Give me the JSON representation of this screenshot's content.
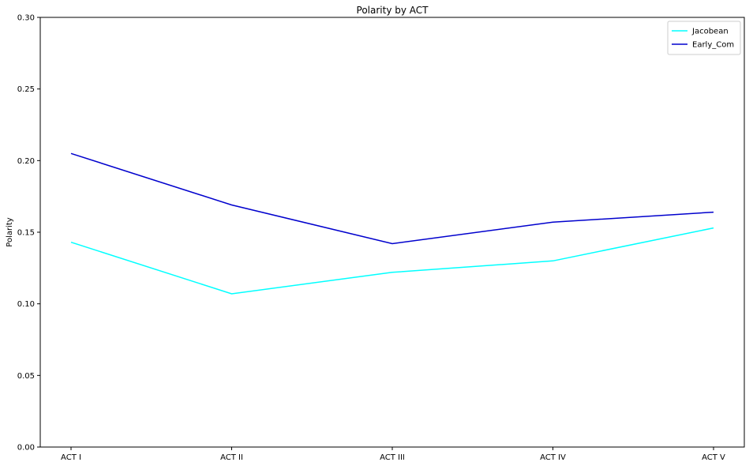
{
  "chart_data": {
    "type": "line",
    "title": "Polarity by ACT",
    "xlabel": "",
    "ylabel": "Polarity",
    "categories": [
      "ACT I",
      "ACT II",
      "ACT III",
      "ACT IV",
      "ACT V"
    ],
    "ylim": [
      0,
      0.3
    ],
    "yticks": [
      "0.00",
      "0.05",
      "0.10",
      "0.15",
      "0.20",
      "0.25",
      "0.30"
    ],
    "grid": false,
    "legend_position": "top-right",
    "series": [
      {
        "name": "Jacobean",
        "color": "#00ffff",
        "values": [
          0.143,
          0.107,
          0.122,
          0.13,
          0.153
        ]
      },
      {
        "name": "Early_Com",
        "color": "#0000cd",
        "values": [
          0.205,
          0.169,
          0.142,
          0.157,
          0.164
        ]
      }
    ]
  }
}
